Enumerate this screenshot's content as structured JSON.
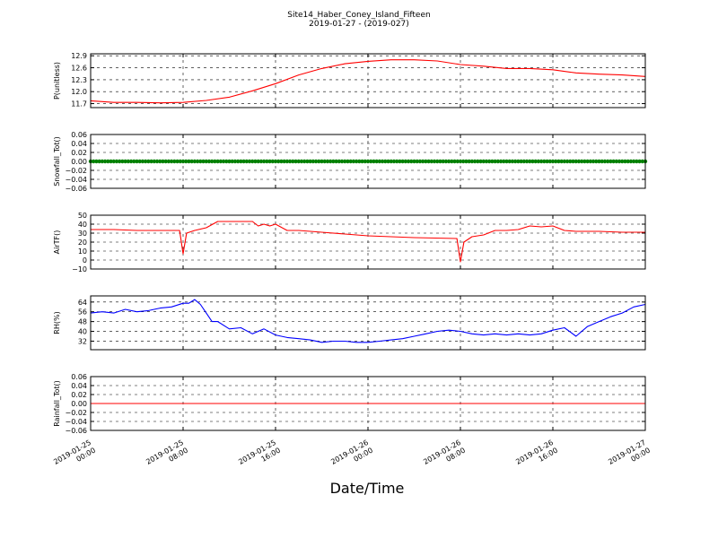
{
  "figure": {
    "title": "Site14_Haber_Coney_Island_Fifteen",
    "subtitle": "2019-01-27 - (2019-027)",
    "xlabel": "Date/Time"
  },
  "chart_data": [
    {
      "type": "line",
      "ylabel": "P(unitless)",
      "color": "#ff0000",
      "ylim": [
        11.6,
        12.95
      ],
      "yticks": [
        "11.7",
        "12.0",
        "12.3",
        "12.6",
        "12.9"
      ],
      "ytick_values": [
        11.7,
        12.0,
        12.3,
        12.6,
        12.9
      ],
      "x": [
        0,
        2,
        4,
        6,
        8,
        10,
        12,
        14,
        16,
        18,
        20,
        22,
        24,
        26,
        28,
        30,
        32,
        34,
        36,
        38,
        40,
        42,
        44,
        46,
        48
      ],
      "values": [
        11.77,
        11.73,
        11.73,
        11.72,
        11.73,
        11.78,
        11.86,
        12.02,
        12.2,
        12.42,
        12.58,
        12.7,
        12.76,
        12.8,
        12.8,
        12.77,
        12.68,
        12.64,
        12.58,
        12.58,
        12.55,
        12.47,
        12.44,
        12.42,
        12.38
      ]
    },
    {
      "type": "scatter",
      "ylabel": "Snowfall_Tot()",
      "color": "#008000",
      "ylim": [
        -0.06,
        0.06
      ],
      "yticks": [
        "−0.06",
        "−0.04",
        "−0.02",
        "0.00",
        "0.02",
        "0.04",
        "0.06"
      ],
      "ytick_values": [
        -0.06,
        -0.04,
        -0.02,
        0.0,
        0.02,
        0.04,
        0.06
      ],
      "x": [
        0,
        48
      ],
      "values": [
        0.0,
        0.0
      ]
    },
    {
      "type": "line",
      "ylabel": "AirTF()",
      "color": "#ff0000",
      "ylim": [
        -10,
        50
      ],
      "yticks": [
        "−10",
        "0",
        "10",
        "20",
        "30",
        "40",
        "50"
      ],
      "ytick_values": [
        -10,
        0,
        10,
        20,
        30,
        40,
        50
      ],
      "x": [
        0,
        2,
        4,
        6,
        7.7,
        8,
        8.3,
        9,
        10,
        11,
        12,
        13,
        14,
        14.5,
        15,
        15.5,
        16,
        17,
        18,
        20,
        22,
        24,
        26,
        28,
        31.7,
        32,
        32.3,
        33,
        34,
        35,
        36,
        37,
        38,
        39,
        40,
        41,
        42,
        44,
        46,
        48
      ],
      "values": [
        34,
        34,
        33,
        33,
        33,
        7,
        30,
        33,
        36,
        43,
        43,
        43,
        43,
        38,
        40,
        38,
        40,
        33,
        33,
        31,
        29,
        27,
        26,
        25,
        24,
        -2,
        20,
        26,
        28,
        33,
        33,
        34,
        38,
        37,
        38,
        33,
        32,
        32,
        31,
        31
      ]
    },
    {
      "type": "line",
      "ylabel": "RH(%)",
      "color": "#0000ff",
      "ylim": [
        25,
        69
      ],
      "yticks": [
        "32",
        "40",
        "48",
        "56",
        "64"
      ],
      "ytick_values": [
        32,
        40,
        48,
        56,
        64
      ],
      "x": [
        0,
        1,
        2,
        3,
        4,
        5,
        6,
        7,
        8,
        8.5,
        9,
        9.5,
        10,
        10.5,
        11,
        12,
        13,
        14,
        15,
        16,
        17,
        18,
        19,
        20,
        21,
        22,
        23,
        24,
        25,
        26,
        27,
        28,
        29,
        30,
        31,
        32,
        33,
        34,
        35,
        36,
        37,
        38,
        39,
        40,
        41,
        42,
        43,
        44,
        45,
        46,
        47,
        48
      ],
      "values": [
        55,
        56,
        55,
        58,
        56,
        57,
        59,
        60,
        63,
        63,
        66,
        62,
        55,
        48,
        48,
        42,
        43,
        38,
        42,
        37,
        35,
        34,
        33,
        31,
        32,
        32,
        31,
        31,
        32,
        33,
        34,
        36,
        38,
        40,
        41,
        40,
        38,
        37,
        38,
        37,
        38,
        37,
        38,
        41,
        43,
        36,
        44,
        48,
        52,
        55,
        60,
        62
      ]
    },
    {
      "type": "line",
      "ylabel": "Rainfall_Tot()",
      "color": "#ff0000",
      "ylim": [
        -0.06,
        0.06
      ],
      "yticks": [
        "−0.06",
        "−0.04",
        "−0.02",
        "0.00",
        "0.02",
        "0.04",
        "0.06"
      ],
      "ytick_values": [
        -0.06,
        -0.04,
        -0.02,
        0.0,
        0.02,
        0.04,
        0.06
      ],
      "x": [
        0,
        48
      ],
      "values": [
        0.0,
        0.0
      ]
    }
  ],
  "xaxis": {
    "xlim": [
      0,
      48
    ],
    "tick_values": [
      0,
      8,
      16,
      24,
      32,
      40,
      48
    ],
    "tick_labels": [
      [
        "2019-01-25",
        "00:00"
      ],
      [
        "2019-01-25",
        "08:00"
      ],
      [
        "2019-01-25",
        "16:00"
      ],
      [
        "2019-01-26",
        "00:00"
      ],
      [
        "2019-01-26",
        "08:00"
      ],
      [
        "2019-01-26",
        "16:00"
      ],
      [
        "2019-01-27",
        "00:00"
      ]
    ]
  }
}
